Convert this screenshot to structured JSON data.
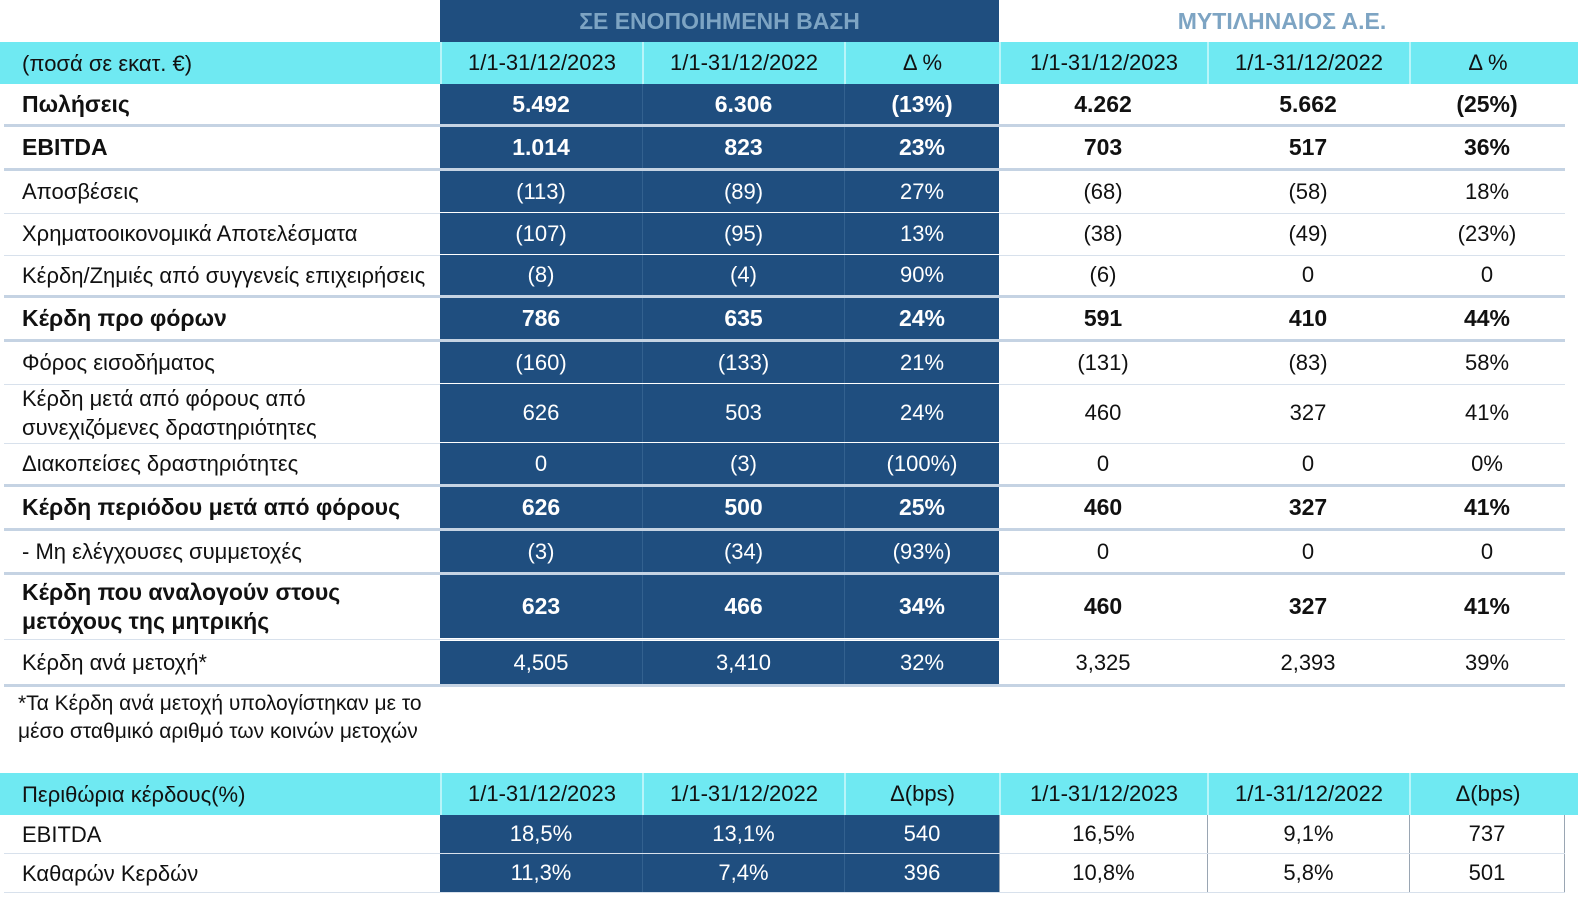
{
  "header": {
    "consolidated_title": "ΣΕ ΕΝΟΠΟΙΗΜΕΝΗ ΒΑΣΗ",
    "company_title": "ΜΥΤΙΛΗΝΑΙΟΣ Α.Ε.",
    "units_label": "(ποσά σε εκατ. €)",
    "columns": [
      "1/1-31/12/2023",
      "1/1-31/12/2022",
      "Δ %",
      "1/1-31/12/2023",
      "1/1-31/12/2022",
      "Δ %"
    ]
  },
  "rows": [
    {
      "label": "Πωλήσεις",
      "bold": true,
      "values": [
        "5.492",
        "6.306",
        "(13%)",
        "4.262",
        "5.662",
        "(25%)"
      ]
    },
    {
      "label": "EBITDA",
      "bold": true,
      "values": [
        "1.014",
        "823",
        "23%",
        "703",
        "517",
        "36%"
      ]
    },
    {
      "label": "Αποσβέσεις",
      "bold": false,
      "values": [
        "(113)",
        "(89)",
        "27%",
        "(68)",
        "(58)",
        "18%"
      ]
    },
    {
      "label": "Χρηματοοικονομικά Αποτελέσματα",
      "bold": false,
      "values": [
        "(107)",
        "(95)",
        "13%",
        "(38)",
        "(49)",
        "(23%)"
      ]
    },
    {
      "label": "Κέρδη/Ζημιές από συγγενείς επιχειρήσεις",
      "bold": false,
      "values": [
        "(8)",
        "(4)",
        "90%",
        "(6)",
        "0",
        "0"
      ]
    },
    {
      "label": "Κέρδη προ φόρων",
      "bold": true,
      "values": [
        "786",
        "635",
        "24%",
        "591",
        "410",
        "44%"
      ]
    },
    {
      "label": "Φόρος εισοδήματος",
      "bold": false,
      "values": [
        "(160)",
        "(133)",
        "21%",
        "(131)",
        "(83)",
        "58%"
      ]
    },
    {
      "label": "Κέρδη μετά από φόρους από συνεχιζόμενες δραστηριότητες",
      "bold": false,
      "values": [
        "626",
        "503",
        "24%",
        "460",
        "327",
        "41%"
      ]
    },
    {
      "label": "Διακοπείσες δραστηριότητες",
      "bold": false,
      "values": [
        "0",
        "(3)",
        "(100%)",
        "0",
        "0",
        "0%"
      ]
    },
    {
      "label": "Κέρδη περιόδου μετά από φόρους",
      "bold": true,
      "values": [
        "626",
        "500",
        "25%",
        "460",
        "327",
        "41%"
      ]
    },
    {
      "label": "- Μη ελέγχουσες συμμετοχές",
      "bold": false,
      "values": [
        "(3)",
        "(34)",
        "(93%)",
        "0",
        "0",
        "0"
      ]
    },
    {
      "label": "Κέρδη που αναλογούν στους μετόχους της μητρικής",
      "bold": true,
      "values": [
        "623",
        "466",
        "34%",
        "460",
        "327",
        "41%"
      ]
    },
    {
      "label": "Κέρδη ανά μετοχή*",
      "bold": false,
      "values": [
        "4,505",
        "3,410",
        "32%",
        "3,325",
        "2,393",
        "39%"
      ]
    }
  ],
  "footnote": "*Τα Κέρδη ανά μετοχή υπολογίστηκαν με το μέσο σταθμικό αριθμό των κοινών μετοχών",
  "margins": {
    "label": "Περιθώρια κέρδους(%)",
    "columns": [
      "1/1-31/12/2023",
      "1/1-31/12/2022",
      "Δ(bps)",
      "1/1-31/12/2023",
      "1/1-31/12/2022",
      "Δ(bps)"
    ],
    "rows": [
      {
        "label": "EBITDA",
        "values": [
          "18,5%",
          "13,1%",
          "540",
          "16,5%",
          "9,1%",
          "737"
        ]
      },
      {
        "label": "Καθαρών Κερδών",
        "values": [
          "11,3%",
          "7,4%",
          "396",
          "10,8%",
          "5,8%",
          "501"
        ]
      }
    ]
  },
  "colors": {
    "navy": "#1f4e7f",
    "cyan": "#6fe9f2",
    "title_text": "#7da4c3"
  }
}
